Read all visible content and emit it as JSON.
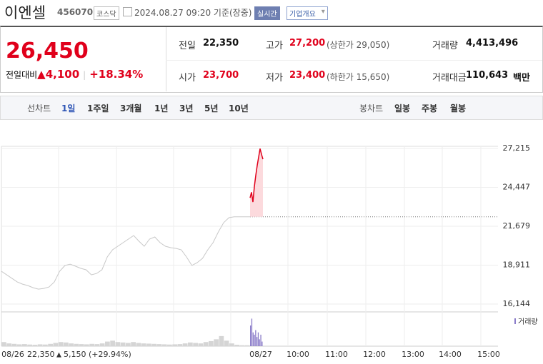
{
  "header": {
    "name": "이엔셀",
    "code": "456070",
    "market": "코스닥",
    "datetime": "2024.08.27 09:20 기준(장중)",
    "realtime": "실시간",
    "company_button": "기업개요"
  },
  "quote": {
    "price": "26,450",
    "change_label": "전일대비",
    "change": "4,100",
    "change_rate": "+18.34%"
  },
  "summary": {
    "rows": [
      [
        {
          "label": "전일",
          "value": "22,350"
        },
        {
          "label": "고가",
          "value": "27,200",
          "note": "(상한가 29,050)"
        },
        {
          "label": "거래량",
          "value": "4,413,496"
        }
      ],
      [
        {
          "label": "시가",
          "value": "23,700"
        },
        {
          "label": "저가",
          "value": "23,400",
          "note": "(하한가 15,650)"
        },
        {
          "label": "거래대금",
          "value": "110,643",
          "unit": "백만"
        }
      ]
    ]
  },
  "tabs": {
    "line_label": "선차트",
    "line_periods": [
      "1일",
      "1주일",
      "3개월",
      "1년",
      "3년",
      "5년",
      "10년"
    ],
    "candle_label": "봉차트",
    "candle_periods": [
      "일봉",
      "주봉",
      "월봉"
    ],
    "selected_index": 0
  },
  "chart_data": {
    "type": "line",
    "ylim": [
      15636,
      27875
    ],
    "yticks": [
      {
        "value": 27215,
        "label": "27,215"
      },
      {
        "value": 24447,
        "label": "24,447"
      },
      {
        "value": 21679,
        "label": "21,679"
      },
      {
        "value": 18911,
        "label": "18,911"
      },
      {
        "value": 16144,
        "label": "16,144"
      }
    ],
    "prev_close": 22350,
    "prev_day_color": "#c8c8c8",
    "prev_day_values": [
      18477,
      18223,
      17969,
      17715,
      17563,
      17461,
      17309,
      17207,
      17258,
      17360,
      17715,
      18477,
      18884,
      18985,
      18833,
      18681,
      18579,
      18223,
      18325,
      18579,
      19493,
      20001,
      20255,
      20509,
      20763,
      21017,
      20611,
      20255,
      20763,
      20916,
      20509,
      20255,
      20154,
      20103,
      20001,
      19493,
      18884,
      19087,
      19392,
      20001,
      20509,
      21271,
      21932,
      22287,
      22350,
      22350,
      22350,
      22350
    ],
    "today_color": "#e0001b",
    "today_values": [
      23700,
      24100,
      23400,
      24500,
      25300,
      26000,
      26600,
      27200,
      26800,
      26450
    ],
    "volume_label": "거래량",
    "vlim": [
      0,
      700000
    ],
    "prev_day_volume": [
      90000,
      60000,
      50000,
      40000,
      45000,
      35000,
      30000,
      40000,
      35000,
      50000,
      70000,
      90000,
      80000,
      60000,
      50000,
      45000,
      40000,
      50000,
      45000,
      60000,
      100000,
      120000,
      90000,
      80000,
      70000,
      90000,
      70000,
      60000,
      55000,
      50000,
      45000,
      40000,
      35000,
      40000,
      45000,
      60000,
      80000,
      70000,
      60000,
      90000,
      110000,
      150000,
      220000,
      120000,
      60000,
      30000,
      20000,
      20000
    ],
    "today_color_volume": "#8a7cc9",
    "today_volume": [
      450000,
      600000,
      300000,
      250000,
      350000,
      200000,
      300000,
      150000,
      250000,
      100000
    ],
    "x_labels": [
      "08/26",
      "08/27",
      "10:00",
      "11:00",
      "12:00",
      "13:00",
      "14:00",
      "15:00"
    ],
    "footer": {
      "date": "08/26",
      "close": "22,350",
      "change": "5,150",
      "rate": "(+29.94%)"
    }
  }
}
